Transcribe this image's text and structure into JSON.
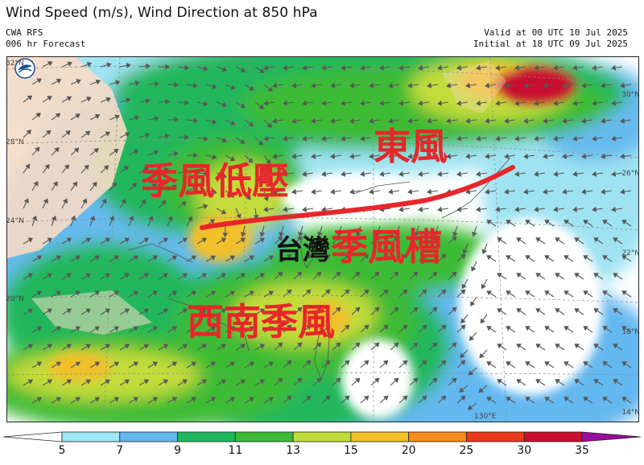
{
  "header": {
    "title": "Wind Speed (m/s), Wind Direction at 850 hPa",
    "model": "CWA RFS",
    "forecast": "006 hr Forecast",
    "valid": "Valid at 00 UTC 10 Jul 2025",
    "initial": "Initial at 18 UTC 09 Jul 2025"
  },
  "map": {
    "annotations": {
      "monsoon_low": "季風低壓",
      "east_wind": "東風",
      "taiwan": "台灣",
      "monsoon_trough": "季風槽",
      "southwest_monsoon": "西南季風"
    },
    "lat_labels": {
      "left_32": "32°N",
      "left_28": "28°N",
      "left_24": "24°N",
      "left_20": "20°N",
      "right_30": "30°N",
      "right_26": "26°N",
      "right_22": "22°N",
      "right_18": "18°N",
      "right_14": "14°N"
    },
    "lon_label": "130°E",
    "colors": {
      "trough_line": "#e8262a",
      "annotation_red": "#e8262a"
    }
  },
  "legend": {
    "ticks": [
      "5",
      "7",
      "9",
      "11",
      "13",
      "15",
      "20",
      "25",
      "30",
      "35"
    ],
    "colors": [
      "#ffffff",
      "#9ee6f5",
      "#63b8ef",
      "#20b85e",
      "#3dbb36",
      "#c3dc3a",
      "#f2c02a",
      "#f58c1c",
      "#e83a1c",
      "#c8102e",
      "#9c0aa0"
    ]
  }
}
